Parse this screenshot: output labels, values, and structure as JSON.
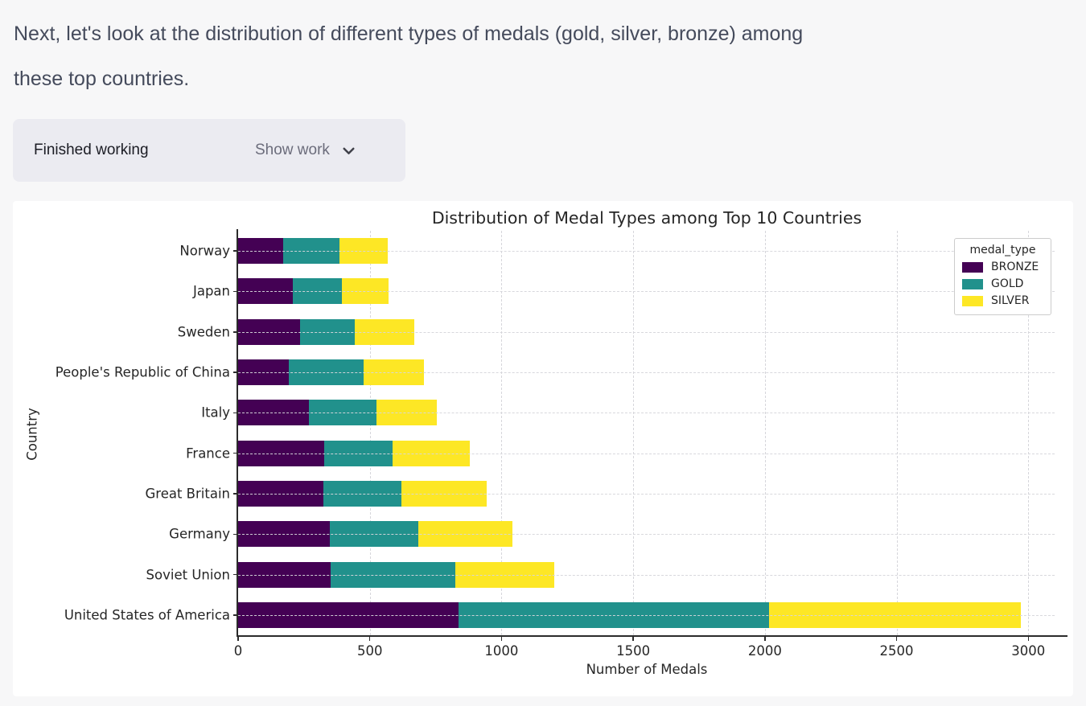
{
  "message": {
    "line1": "Next, let's look at the distribution of different types of medals (gold, silver, bronze) among",
    "line2": "these top countries."
  },
  "status_bar": {
    "status": "Finished working",
    "toggle": "Show work",
    "chevron_icon": "chevron-down"
  },
  "chart_data": {
    "type": "bar",
    "orientation": "horizontal",
    "stacked": true,
    "title": "Distribution of Medal Types among Top 10 Countries",
    "xlabel": "Number of Medals",
    "ylabel": "Country",
    "xlim": [
      0,
      3100
    ],
    "xticks": [
      0,
      500,
      1000,
      1500,
      2000,
      2500,
      3000
    ],
    "grid": true,
    "grid_style": "dashed",
    "legend": {
      "title": "medal_type",
      "position": "upper right",
      "entries": [
        {
          "label": "BRONZE",
          "color": "#440154"
        },
        {
          "label": "GOLD",
          "color": "#21918c"
        },
        {
          "label": "SILVER",
          "color": "#fde725"
        }
      ]
    },
    "categories": [
      "Norway",
      "Japan",
      "Sweden",
      "People's Republic of China",
      "Italy",
      "France",
      "Great Britain",
      "Germany",
      "Soviet Union",
      "United States of America"
    ],
    "series": [
      {
        "name": "BRONZE",
        "color": "#440154",
        "values": [
          172,
          207,
          235,
          192,
          268,
          327,
          325,
          347,
          350,
          836
        ]
      },
      {
        "name": "GOLD",
        "color": "#21918c",
        "values": [
          213,
          187,
          209,
          285,
          256,
          260,
          295,
          336,
          474,
          1181
        ]
      },
      {
        "name": "SILVER",
        "color": "#fde725",
        "values": [
          184,
          177,
          224,
          230,
          231,
          293,
          323,
          360,
          377,
          955
        ]
      }
    ]
  }
}
